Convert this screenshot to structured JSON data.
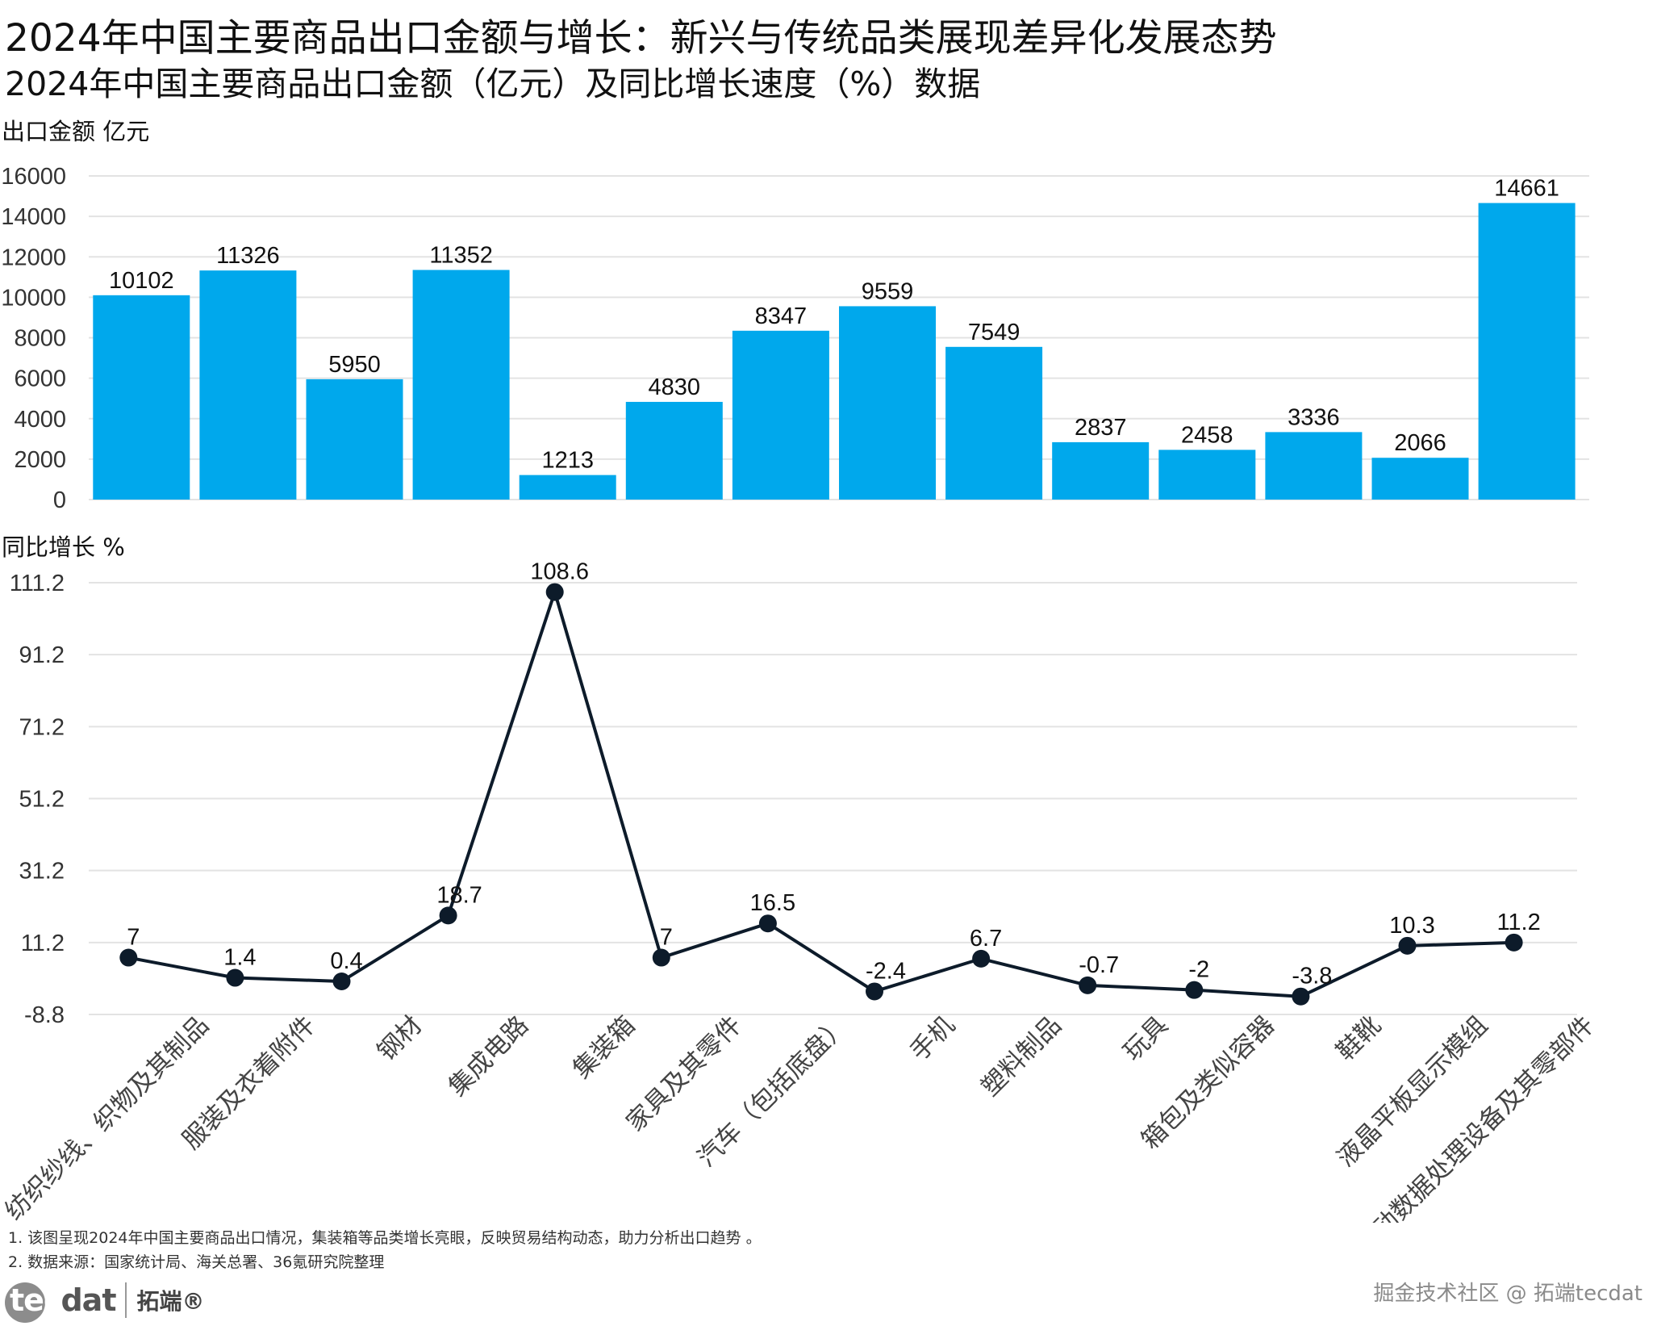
{
  "title": "2024年中国主要商品出口金额与增长：新兴与传统品类展现差异化发展态势",
  "subtitle": "2024年中国主要商品出口金额（亿元）及同比增长速度（%）数据",
  "colors": {
    "bar": "#00a8ec",
    "line": "#0d1b2a",
    "grid": "#e3e3e3"
  },
  "chart_data": [
    {
      "type": "bar",
      "ylabel": "出口金额  亿元",
      "ylim": [
        0,
        16000
      ],
      "yticks": [
        "0",
        "2000",
        "4000",
        "6000",
        "8000",
        "10000",
        "12000",
        "14000",
        "16000"
      ],
      "categories": [
        "纺织纱线、织物及其制品",
        "服装及衣着附件",
        "钢材",
        "集成电路",
        "集装箱",
        "家具及其零件",
        "汽车（包括底盘）",
        "手机",
        "塑料制品",
        "玩具",
        "箱包及类似容器",
        "鞋靴",
        "液晶平板显示模组",
        "自动数据处理设备及其零部件"
      ],
      "values": [
        10102,
        11326,
        5950,
        11352,
        1213,
        4830,
        8347,
        9559,
        7549,
        2837,
        2458,
        3336,
        2066,
        14661
      ],
      "grid": true
    },
    {
      "type": "line",
      "ylabel": "同比增长  %",
      "ylim": [
        -8.8,
        111.2
      ],
      "yticks": [
        "-8.8",
        "11.2",
        "31.2",
        "51.2",
        "71.2",
        "91.2",
        "111.2"
      ],
      "x_labels": [
        "纺织纱线、织物及其制品",
        "服装及衣着附件",
        "钢材",
        "集成电路",
        "集装箱",
        "家具及其零件",
        "汽车（包括底盘）",
        "手机",
        "塑料制品",
        "玩具",
        "箱包及类似容器",
        "鞋靴",
        "液晶平板显示模组",
        "自动数据处理设备及其零部件"
      ],
      "values": [
        7,
        1.4,
        0.4,
        18.7,
        108.6,
        7,
        16.5,
        -2.4,
        6.7,
        -0.7,
        -2,
        -3.8,
        10.3,
        11.2
      ],
      "grid": true
    }
  ],
  "notes": [
    "1.  该图呈现2024年中国主要商品出口情况，集装箱等品类增长亮眼，反映贸易结构动态，助力分析出口趋势  。",
    "2.  数据来源：国家统计局、海关总署、36氪研究院整理"
  ],
  "logo": {
    "text_first": "tec",
    "text_rest": "dat",
    "cn": "拓端®"
  },
  "watermark": "掘金技术社区 @ 拓端tecdat"
}
